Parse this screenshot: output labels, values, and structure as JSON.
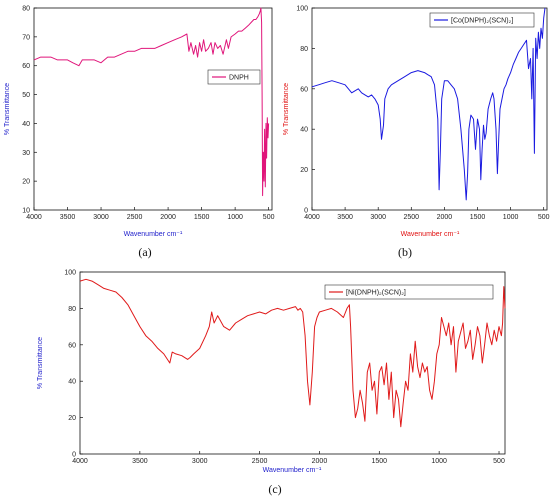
{
  "captions": [
    "(a)",
    "(b)",
    "(c)"
  ],
  "chart_data": [
    {
      "type": "line",
      "ylabel": "% Transmittance",
      "xlabel": "Wavenumber cm⁻¹",
      "xlim": [
        4000,
        450
      ],
      "ylim": [
        10,
        80
      ],
      "xticks": [
        4000,
        3500,
        3000,
        2500,
        2000,
        1500,
        1000,
        500
      ],
      "yticks": [
        10,
        20,
        30,
        40,
        50,
        60,
        70,
        80
      ],
      "legend_position": "right",
      "colors": {
        "line": "#e0157a",
        "ylabel": "#2222cc",
        "xlabel": "#2222cc"
      },
      "series": [
        {
          "name": "DNPH",
          "x": [
            4000,
            3900,
            3750,
            3650,
            3500,
            3420,
            3330,
            3280,
            3200,
            3100,
            3000,
            2950,
            2900,
            2800,
            2700,
            2600,
            2500,
            2400,
            2300,
            2200,
            2100,
            2000,
            1900,
            1800,
            1720,
            1690,
            1660,
            1620,
            1590,
            1560,
            1530,
            1500,
            1470,
            1440,
            1400,
            1360,
            1330,
            1300,
            1260,
            1220,
            1180,
            1130,
            1100,
            1060,
            1000,
            950,
            900,
            850,
            800,
            760,
            720,
            690,
            660,
            640,
            625,
            615,
            605,
            598,
            590,
            580,
            570,
            560,
            550,
            540,
            530,
            520,
            510,
            500
          ],
          "y": [
            62,
            63,
            63,
            62,
            62,
            61,
            60,
            62,
            62,
            62,
            61,
            62,
            63,
            63,
            64,
            65,
            65,
            66,
            66,
            66,
            67,
            68,
            69,
            70,
            71,
            65,
            68,
            64,
            67,
            63,
            68,
            65,
            69,
            65,
            66,
            68,
            64,
            68,
            66,
            67,
            64,
            69,
            66,
            70,
            71,
            72,
            72,
            73,
            74,
            75,
            76,
            76,
            77,
            78,
            79,
            80,
            75,
            50,
            15,
            30,
            20,
            38,
            18,
            40,
            28,
            42,
            35,
            40
          ]
        }
      ]
    },
    {
      "type": "line",
      "ylabel": "% Transmittance",
      "xlabel": "Wavenumber cm⁻¹",
      "xlim": [
        4000,
        450
      ],
      "ylim": [
        0,
        100
      ],
      "xticks": [
        4000,
        3500,
        3000,
        2500,
        2000,
        1500,
        1000,
        500
      ],
      "yticks": [
        0,
        20,
        40,
        60,
        80,
        100
      ],
      "legend_position": "top-right",
      "colors": {
        "line": "#1a1ae0",
        "ylabel": "#e01010",
        "xlabel": "#e01010"
      },
      "series": [
        {
          "name": "[Co(DNPH)₂(SCN)₂]",
          "x": [
            4000,
            3900,
            3800,
            3700,
            3600,
            3500,
            3450,
            3400,
            3350,
            3300,
            3250,
            3200,
            3150,
            3100,
            3050,
            3000,
            2970,
            2950,
            2920,
            2900,
            2850,
            2800,
            2700,
            2600,
            2500,
            2400,
            2300,
            2250,
            2200,
            2150,
            2100,
            2080,
            2060,
            2040,
            2000,
            1950,
            1900,
            1850,
            1800,
            1750,
            1700,
            1670,
            1650,
            1630,
            1600,
            1560,
            1530,
            1500,
            1470,
            1450,
            1430,
            1410,
            1390,
            1370,
            1340,
            1300,
            1270,
            1250,
            1220,
            1200,
            1180,
            1160,
            1130,
            1100,
            1070,
            1040,
            1000,
            960,
            920,
            880,
            840,
            800,
            760,
            730,
            700,
            680,
            660,
            640,
            620,
            600,
            580,
            560,
            540,
            520,
            500,
            480
          ],
          "y": [
            61,
            62,
            63,
            64,
            63,
            62,
            60,
            58,
            59,
            60,
            58,
            57,
            56,
            57,
            55,
            52,
            45,
            35,
            42,
            55,
            60,
            62,
            64,
            66,
            68,
            69,
            68,
            67,
            66,
            62,
            45,
            10,
            30,
            55,
            64,
            64,
            62,
            60,
            55,
            40,
            20,
            5,
            18,
            40,
            47,
            45,
            30,
            45,
            40,
            15,
            30,
            42,
            35,
            38,
            50,
            55,
            58,
            55,
            40,
            18,
            35,
            50,
            55,
            60,
            62,
            65,
            68,
            72,
            75,
            78,
            80,
            82,
            84,
            70,
            75,
            55,
            80,
            28,
            85,
            75,
            88,
            80,
            90,
            85,
            95,
            100
          ]
        }
      ]
    },
    {
      "type": "line",
      "ylabel": "% Transmittance",
      "xlabel": "Wavenumber cm⁻¹",
      "xlim": [
        4000,
        450
      ],
      "ylim": [
        0,
        100
      ],
      "xticks": [
        4000,
        3500,
        3000,
        2500,
        2000,
        1500,
        1000,
        500
      ],
      "yticks": [
        0,
        20,
        40,
        60,
        80,
        100
      ],
      "legend_position": "top-right",
      "colors": {
        "line": "#e01a1a",
        "ylabel": "#2222cc",
        "xlabel": "#2222cc"
      },
      "series": [
        {
          "name": "[Ni(DNPH)₂(SCN)₂]",
          "x": [
            4000,
            3950,
            3900,
            3850,
            3800,
            3750,
            3700,
            3650,
            3600,
            3550,
            3500,
            3450,
            3400,
            3350,
            3300,
            3250,
            3230,
            3200,
            3150,
            3100,
            3080,
            3050,
            3000,
            2950,
            2920,
            2900,
            2880,
            2850,
            2800,
            2750,
            2700,
            2650,
            2600,
            2500,
            2450,
            2400,
            2350,
            2300,
            2250,
            2200,
            2180,
            2160,
            2140,
            2120,
            2100,
            2080,
            2060,
            2040,
            2020,
            2000,
            1950,
            1900,
            1850,
            1800,
            1770,
            1750,
            1740,
            1720,
            1700,
            1680,
            1660,
            1640,
            1620,
            1600,
            1580,
            1560,
            1540,
            1520,
            1500,
            1480,
            1460,
            1440,
            1420,
            1400,
            1380,
            1360,
            1340,
            1320,
            1300,
            1280,
            1260,
            1240,
            1220,
            1200,
            1180,
            1160,
            1140,
            1120,
            1100,
            1080,
            1060,
            1040,
            1020,
            1000,
            980,
            960,
            940,
            920,
            900,
            880,
            860,
            840,
            820,
            800,
            780,
            760,
            740,
            720,
            700,
            680,
            660,
            640,
            620,
            600,
            580,
            560,
            540,
            520,
            500,
            480,
            470,
            460,
            450
          ],
          "y": [
            95,
            96,
            95,
            93,
            91,
            90,
            89,
            86,
            82,
            76,
            70,
            65,
            62,
            58,
            55,
            50,
            56,
            55,
            54,
            52,
            53,
            55,
            58,
            65,
            70,
            78,
            72,
            76,
            70,
            68,
            72,
            74,
            76,
            78,
            77,
            79,
            80,
            79,
            80,
            81,
            79,
            80,
            78,
            65,
            40,
            27,
            45,
            70,
            75,
            78,
            79,
            80,
            78,
            75,
            80,
            82,
            70,
            35,
            20,
            25,
            35,
            28,
            18,
            45,
            50,
            35,
            40,
            22,
            45,
            48,
            38,
            50,
            30,
            45,
            20,
            35,
            30,
            15,
            28,
            40,
            35,
            55,
            45,
            62,
            48,
            42,
            50,
            45,
            48,
            35,
            30,
            40,
            55,
            60,
            75,
            70,
            65,
            72,
            60,
            70,
            45,
            62,
            67,
            72,
            58,
            62,
            68,
            52,
            60,
            70,
            65,
            50,
            60,
            72,
            65,
            60,
            68,
            62,
            70,
            65,
            72,
            92,
            80
          ]
        }
      ]
    }
  ]
}
